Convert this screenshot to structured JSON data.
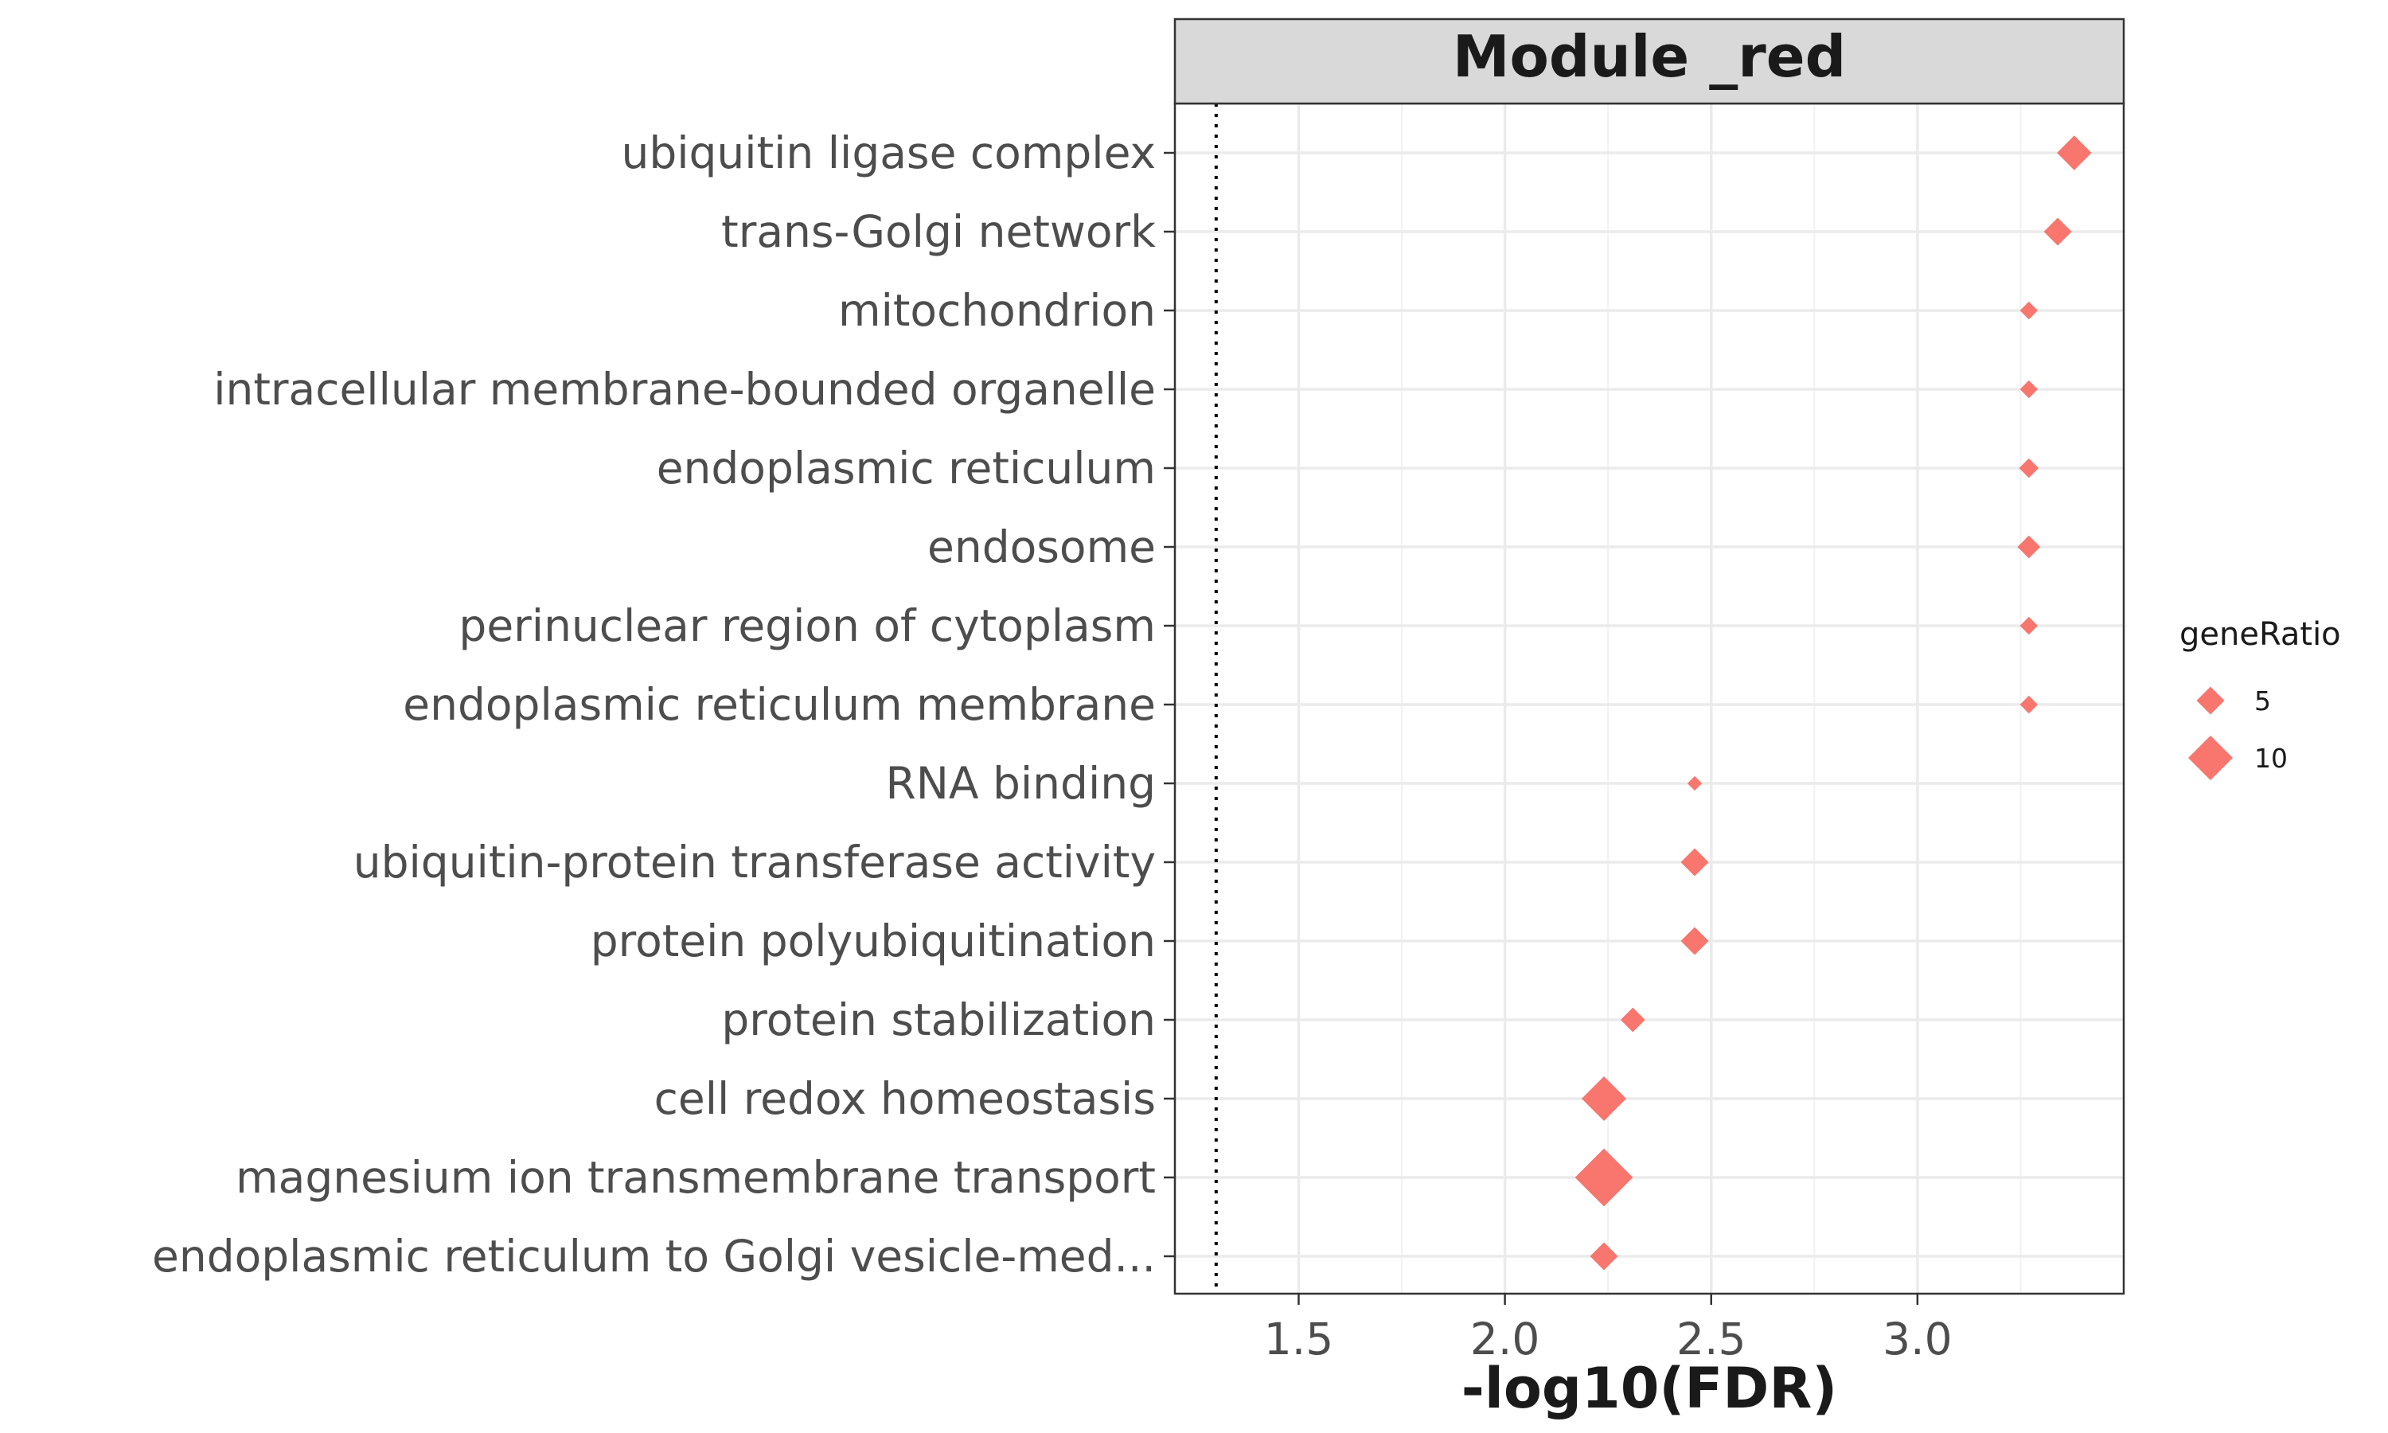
{
  "chart_data": {
    "type": "scatter",
    "facet_title": "Module _red",
    "xlabel": "-log10(FDR)",
    "ylabel": "",
    "xlim": [
      1.2,
      3.5
    ],
    "x_ticks": [
      "1.5",
      "2.0",
      "2.5",
      "3.0"
    ],
    "x_tick_values": [
      1.5,
      2.0,
      2.5,
      3.0
    ],
    "threshold_line": 1.3,
    "grid": true,
    "marker": "diamond",
    "color": "#F8766D",
    "categories": [
      "ubiquitin ligase complex",
      "trans-Golgi network",
      "mitochondrion",
      "intracellular membrane-bounded organelle",
      "endoplasmic reticulum",
      "endosome",
      "perinuclear region of cytoplasm",
      "endoplasmic reticulum membrane",
      "RNA binding",
      "ubiquitin-protein transferase activity",
      "protein polyubiquitination",
      "protein stabilization",
      "cell redox homeostasis",
      "magnesium ion transmembrane transport",
      "endoplasmic reticulum to Golgi vesicle-med..."
    ],
    "points": [
      {
        "x": 3.38,
        "size": 7
      },
      {
        "x": 3.34,
        "size": 5
      },
      {
        "x": 3.27,
        "size": 2
      },
      {
        "x": 3.27,
        "size": 2
      },
      {
        "x": 3.27,
        "size": 2.5
      },
      {
        "x": 3.27,
        "size": 3.5
      },
      {
        "x": 3.27,
        "size": 2
      },
      {
        "x": 3.27,
        "size": 2
      },
      {
        "x": 2.46,
        "size": 1
      },
      {
        "x": 2.46,
        "size": 5
      },
      {
        "x": 2.46,
        "size": 5
      },
      {
        "x": 2.31,
        "size": 4
      },
      {
        "x": 2.24,
        "size": 10
      },
      {
        "x": 2.24,
        "size": 14
      },
      {
        "x": 2.24,
        "size": 5
      }
    ],
    "legend": {
      "title": "geneRatio",
      "position": "right",
      "entries": [
        {
          "label": "5",
          "size": 5
        },
        {
          "label": "10",
          "size": 10
        }
      ]
    }
  }
}
